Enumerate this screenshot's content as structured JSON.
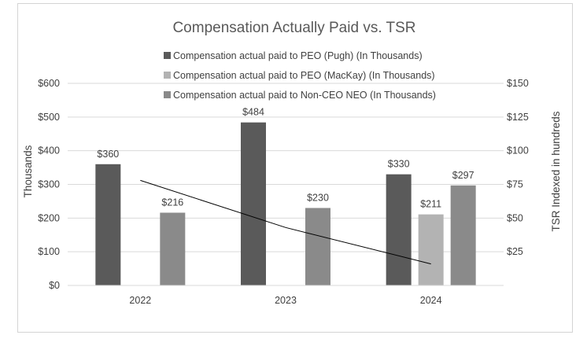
{
  "chart_data": {
    "type": "bar",
    "title": "Compensation Actually Paid vs. TSR",
    "categories": [
      "2022",
      "2023",
      "2024"
    ],
    "series": [
      {
        "name": "Compensation actual paid to PEO (Pugh) (In Thousands)",
        "color": "#5a5a5a",
        "values": [
          360,
          484,
          330
        ],
        "labels": [
          "$360",
          "$484",
          "$330"
        ]
      },
      {
        "name": "Compensation actual paid to PEO (MacKay) (In Thousands)",
        "color": "#b3b3b3",
        "values": [
          null,
          null,
          211
        ],
        "labels": [
          "",
          "",
          "$211"
        ]
      },
      {
        "name": "Compensation actual paid to Non-CEO NEO (In Thousands)",
        "color": "#8a8a8a",
        "values": [
          216,
          230,
          297
        ],
        "labels": [
          "$216",
          "$230",
          "$297"
        ]
      }
    ],
    "tsr_line": {
      "name": "TSR",
      "color": "#000000",
      "values": [
        78,
        43,
        16
      ]
    },
    "ylabel": "Thousands",
    "ylim": [
      0,
      600
    ],
    "yticks": [
      0,
      100,
      200,
      300,
      400,
      500,
      600
    ],
    "ytick_labels": [
      "$0",
      "$100",
      "$200",
      "$300",
      "$400",
      "$500",
      "$600"
    ],
    "y2label": "TSR Indexed in hundreds",
    "y2lim": [
      0,
      150
    ],
    "y2ticks": [
      25,
      50,
      75,
      100,
      125,
      150
    ],
    "y2tick_labels": [
      "$25",
      "$50",
      "$75",
      "$100",
      "$125",
      "$150"
    ],
    "legend_position": "top"
  }
}
